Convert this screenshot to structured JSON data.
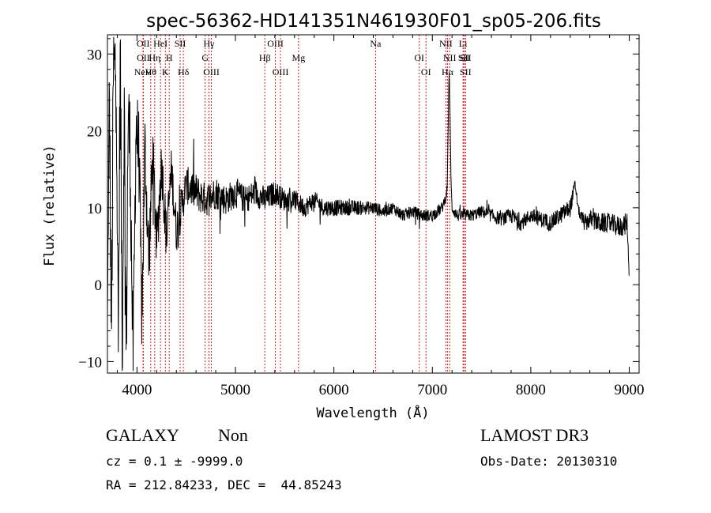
{
  "chart_data": {
    "type": "line",
    "title": "spec-56362-HD141351N461930F01_sp05-206.fits",
    "xlabel": "Wavelength (Å)",
    "ylabel": "Flux (relative)",
    "xlim": [
      3700,
      9100
    ],
    "ylim": [
      -11.5,
      32.5
    ],
    "xticks": [
      4000,
      5000,
      6000,
      7000,
      8000,
      9000
    ],
    "yticks": [
      -10,
      0,
      10,
      20,
      30
    ],
    "spectrum_anchors": {
      "x": [
        3700,
        3720,
        3740,
        3760,
        3790,
        3810,
        3830,
        3850,
        3870,
        3890,
        3910,
        3930,
        3960,
        3990,
        4020,
        4050,
        4080,
        4120,
        4160,
        4200,
        4250,
        4300,
        4350,
        4400,
        4500,
        4600,
        4700,
        4800,
        4900,
        5000,
        5100,
        5200,
        5300,
        5400,
        5500,
        5600,
        5700,
        5800,
        5900,
        6000,
        6100,
        6200,
        6300,
        6400,
        6500,
        6600,
        6700,
        6800,
        6900,
        7000,
        7100,
        7150,
        7170,
        7180,
        7190,
        7200,
        7250,
        7300,
        7400,
        7500,
        7600,
        7700,
        7800,
        7900,
        8000,
        8100,
        8200,
        8300,
        8400,
        8450,
        8480,
        8500,
        8550,
        8600,
        8700,
        8800,
        8900,
        8980,
        9000
      ],
      "y": [
        -4,
        25,
        -8,
        27,
        29,
        -10,
        31,
        -9,
        24,
        -10,
        22,
        18,
        -11,
        21,
        17,
        -5,
        18,
        3,
        17,
        5,
        16,
        6,
        15,
        7,
        13,
        12,
        11,
        12,
        11,
        12,
        11,
        12,
        11,
        12,
        11,
        11,
        10,
        11,
        10,
        10,
        10,
        10,
        10,
        10,
        9.5,
        10,
        9,
        9.5,
        9,
        9,
        10,
        12,
        28,
        22,
        13,
        10,
        9,
        9,
        9,
        9.5,
        9,
        8.5,
        9,
        8,
        9,
        8.5,
        8,
        9,
        10,
        13,
        10,
        9,
        8,
        8.5,
        8,
        8,
        7.5,
        8,
        0.5
      ],
      "noise": [
        0,
        8,
        8,
        8,
        8,
        8,
        8,
        8,
        8,
        8,
        7,
        7,
        7,
        6,
        6,
        5,
        5,
        5,
        4,
        4,
        3.5,
        3.5,
        3,
        3,
        2.5,
        2.5,
        2.2,
        2.2,
        2,
        2,
        1.8,
        1.8,
        1.7,
        1.6,
        1.5,
        1.4,
        1.3,
        1.2,
        1.1,
        1.1,
        1,
        1,
        0.9,
        0.9,
        0.8,
        0.8,
        0.8,
        0.8,
        0.8,
        0.8,
        0.8,
        0.5,
        0,
        0,
        0.5,
        0.8,
        0.8,
        0.8,
        0.8,
        0.8,
        0.9,
        0.9,
        1,
        1,
        1,
        1,
        1.1,
        1.1,
        1.2,
        0.8,
        0.5,
        0.8,
        1.2,
        1.2,
        1.3,
        1.3,
        1.4,
        1.4,
        0
      ]
    },
    "spectral_lines": [
      {
        "label": "NeV",
        "wavelength": 3726,
        "row": 3
      },
      {
        "label": "OII",
        "wavelength": 3727,
        "row": 1
      },
      {
        "label": "OII",
        "wavelength": 3729,
        "row": 2
      },
      {
        "label": "Hθ",
        "wavelength": 3798,
        "row": 3
      },
      {
        "label": "HeI",
        "wavelength": 3889,
        "row": 1
      },
      {
        "label": "Hη",
        "wavelength": 3835,
        "row": 2
      },
      {
        "label": "H",
        "wavelength": 3970,
        "row": 2
      },
      {
        "label": "K",
        "wavelength": 3934,
        "row": 3
      },
      {
        "label": "SII",
        "wavelength": 4072,
        "row": 1
      },
      {
        "label": "Hδ",
        "wavelength": 4102,
        "row": 3
      },
      {
        "label": "Hγ",
        "wavelength": 4340,
        "row": 1
      },
      {
        "label": "G",
        "wavelength": 4305,
        "row": 2
      },
      {
        "label": "OIII",
        "wavelength": 4363,
        "row": 3
      },
      {
        "label": "OIII",
        "wavelength": 4959,
        "row": 1
      },
      {
        "label": "Hβ",
        "wavelength": 4861,
        "row": 2
      },
      {
        "label": "OIII",
        "wavelength": 5007,
        "row": 3
      },
      {
        "label": "Mg",
        "wavelength": 5175,
        "row": 2
      },
      {
        "label": "Na",
        "wavelength": 5893,
        "row": 1
      },
      {
        "label": "OI",
        "wavelength": 6300,
        "row": 2
      },
      {
        "label": "OI",
        "wavelength": 6363,
        "row": 3
      },
      {
        "label": "NII",
        "wavelength": 6548,
        "row": 1
      },
      {
        "label": "NII",
        "wavelength": 6583,
        "row": 2
      },
      {
        "label": "Hα",
        "wavelength": 6563,
        "row": 3
      },
      {
        "label": "SII",
        "wavelength": 6716,
        "row": 2
      },
      {
        "label": "Li",
        "wavelength": 6708,
        "row": 1
      },
      {
        "label": "SII",
        "wavelength": 6731,
        "row": 3
      },
      {
        "label": "SII",
        "wavelength": 6731,
        "row": 2
      }
    ],
    "redshift_factor": 1.09
  },
  "info": {
    "class_label": "GALAXY",
    "subclass_label": "Non",
    "survey_label": "LAMOST DR3",
    "cz_line": "cz = 0.1 ± -9999.0",
    "obs_date_line": "Obs-Date: 20130310",
    "coords_line": "RA = 212.84233, DEC =  44.85243"
  }
}
